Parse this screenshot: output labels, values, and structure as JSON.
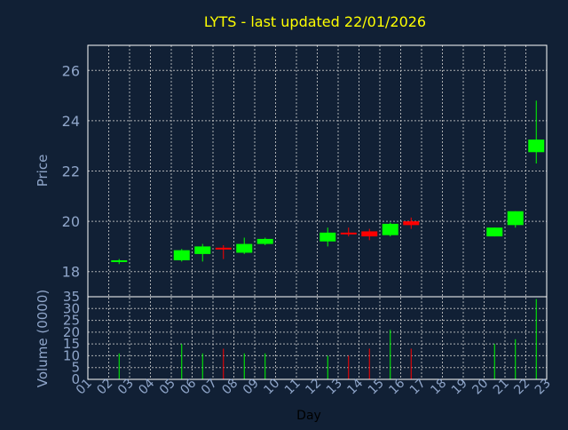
{
  "chart_data": {
    "type": "candlestick",
    "title": "LYTS - last updated 22/01/2026",
    "xlabel": "Day",
    "days": [
      "01",
      "02",
      "03",
      "04",
      "05",
      "06",
      "07",
      "08",
      "09",
      "10",
      "11",
      "12",
      "13",
      "14",
      "15",
      "16",
      "17",
      "18",
      "19",
      "20",
      "21",
      "22",
      "23"
    ],
    "price_panel": {
      "ylabel": "Price",
      "ylim": [
        17,
        27
      ],
      "yticks": [
        18,
        20,
        22,
        24,
        26
      ],
      "candles": [
        {
          "day": "02",
          "open": 18.45,
          "high": 18.5,
          "low": 18.3,
          "close": 18.45
        },
        {
          "day": "05",
          "open": 18.45,
          "high": 18.9,
          "low": 18.4,
          "close": 18.85
        },
        {
          "day": "06",
          "open": 18.7,
          "high": 19.1,
          "low": 18.4,
          "close": 19.0
        },
        {
          "day": "07",
          "open": 18.95,
          "high": 19.05,
          "low": 18.5,
          "close": 18.9
        },
        {
          "day": "08",
          "open": 18.75,
          "high": 19.35,
          "low": 18.7,
          "close": 19.1
        },
        {
          "day": "09",
          "open": 19.1,
          "high": 19.35,
          "low": 19.05,
          "close": 19.3
        },
        {
          "day": "12",
          "open": 19.2,
          "high": 19.75,
          "low": 19.0,
          "close": 19.55
        },
        {
          "day": "13",
          "open": 19.55,
          "high": 19.75,
          "low": 19.4,
          "close": 19.5
        },
        {
          "day": "14",
          "open": 19.6,
          "high": 19.7,
          "low": 19.25,
          "close": 19.4
        },
        {
          "day": "15",
          "open": 19.45,
          "high": 19.95,
          "low": 19.4,
          "close": 19.9
        },
        {
          "day": "16",
          "open": 20.0,
          "high": 20.15,
          "low": 19.7,
          "close": 19.85
        },
        {
          "day": "20",
          "open": 19.4,
          "high": 19.75,
          "low": 19.4,
          "close": 19.75
        },
        {
          "day": "21",
          "open": 19.85,
          "high": 20.4,
          "low": 19.75,
          "close": 20.4
        },
        {
          "day": "22",
          "open": 22.75,
          "high": 24.8,
          "low": 22.3,
          "close": 23.25
        }
      ]
    },
    "volume_panel": {
      "ylabel": "Volume (0000)",
      "ylim": [
        0,
        35
      ],
      "yticks": [
        0,
        5,
        10,
        15,
        20,
        25,
        30,
        35
      ],
      "bars": [
        {
          "day": "02",
          "value": 11,
          "direction": "up"
        },
        {
          "day": "05",
          "value": 15,
          "direction": "up"
        },
        {
          "day": "06",
          "value": 11,
          "direction": "up"
        },
        {
          "day": "07",
          "value": 13,
          "direction": "down"
        },
        {
          "day": "08",
          "value": 11,
          "direction": "up"
        },
        {
          "day": "09",
          "value": 11,
          "direction": "up"
        },
        {
          "day": "12",
          "value": 10,
          "direction": "up"
        },
        {
          "day": "13",
          "value": 10,
          "direction": "down"
        },
        {
          "day": "14",
          "value": 13,
          "direction": "down"
        },
        {
          "day": "15",
          "value": 21,
          "direction": "up"
        },
        {
          "day": "16",
          "value": 13,
          "direction": "down"
        },
        {
          "day": "20",
          "value": 15,
          "direction": "up"
        },
        {
          "day": "21",
          "value": 17,
          "direction": "up"
        },
        {
          "day": "22",
          "value": 34,
          "direction": "up"
        }
      ]
    },
    "grid": true,
    "colors": {
      "background": "#112035",
      "plot_background": "#112035",
      "grid": "#c8c8c8",
      "axis": "#ffffff",
      "title": "#ffff00",
      "label": "#8fa5c9",
      "up": "#00ff00",
      "down": "#ff0000"
    }
  }
}
